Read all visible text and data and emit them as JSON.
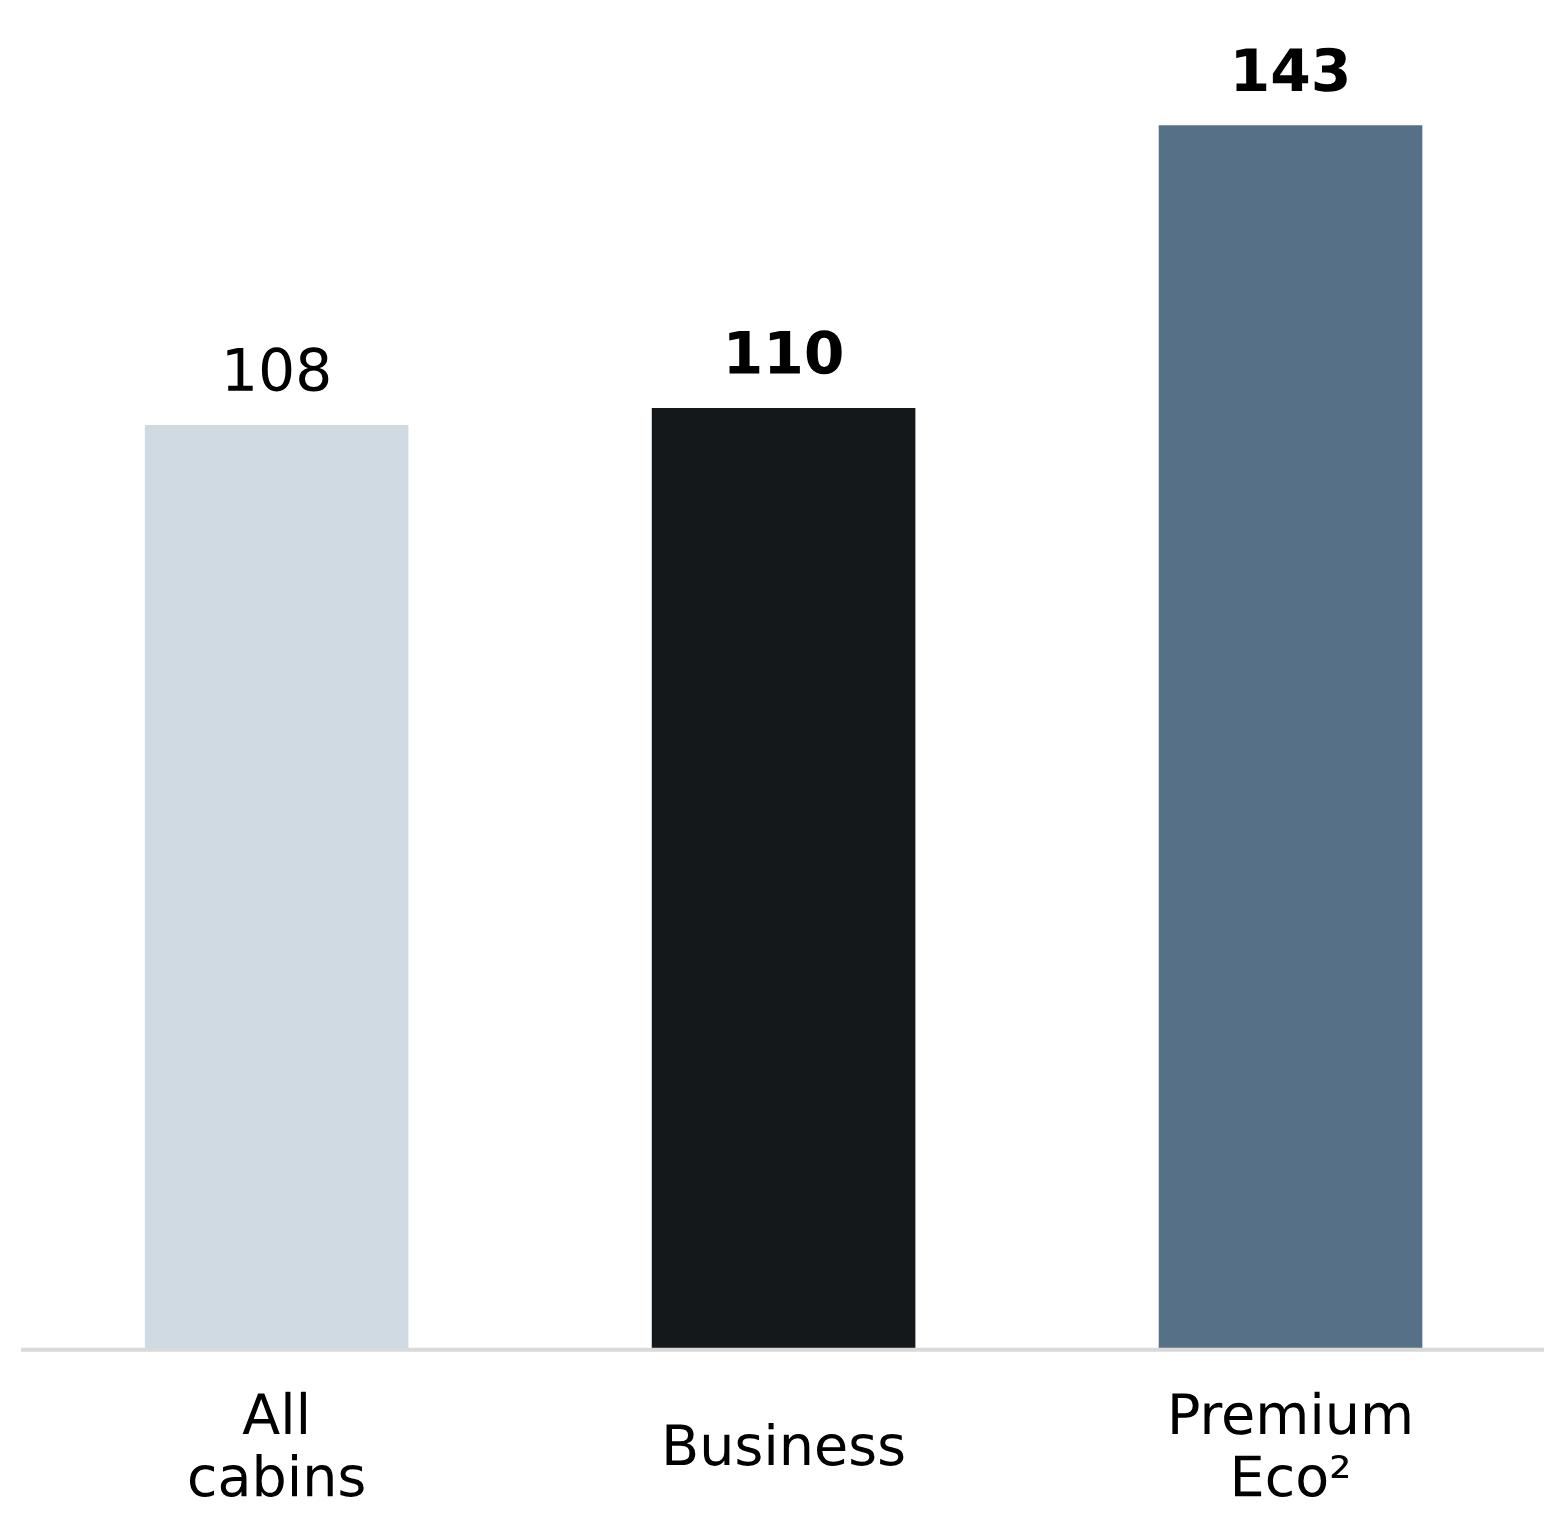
{
  "chart_data": {
    "type": "bar",
    "categories": [
      "All\ncabins",
      "Business",
      "Premium\nEco²"
    ],
    "values": [
      108,
      110,
      143
    ],
    "colors": [
      "#d0dae3",
      "#14181b",
      "#557087"
    ],
    "data_labels": true,
    "grid": false,
    "legend": false
  }
}
